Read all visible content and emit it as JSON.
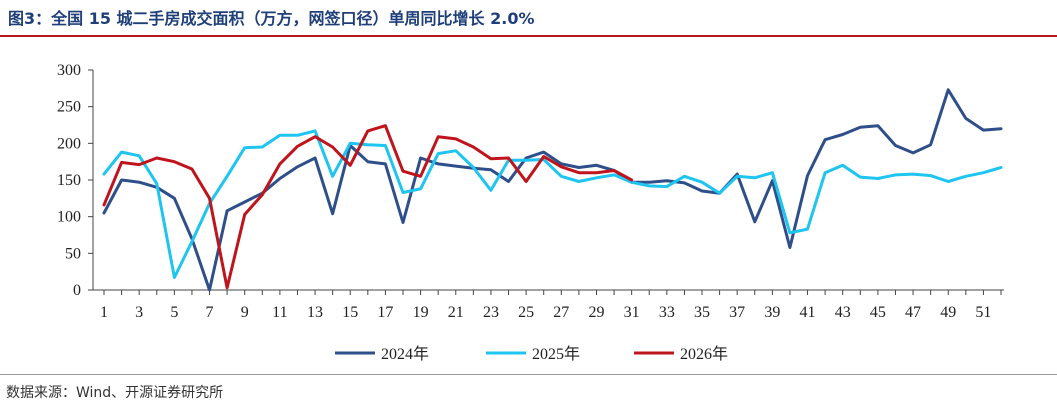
{
  "header": {
    "title": "图3：全国 15 城二手房成交面积（万方，网签口径）单周同比增长 2.0%"
  },
  "footer": {
    "source": "数据来源：Wind、开源证券研究所"
  },
  "chart_data": {
    "type": "line",
    "title": "",
    "xlabel": "",
    "ylabel": "",
    "ylim": [
      0,
      300
    ],
    "yticks": [
      0,
      50,
      100,
      150,
      200,
      250,
      300
    ],
    "xlim": [
      1,
      52
    ],
    "xticks": [
      1,
      3,
      5,
      7,
      9,
      11,
      13,
      15,
      17,
      19,
      21,
      23,
      25,
      27,
      29,
      31,
      33,
      35,
      37,
      39,
      41,
      43,
      45,
      47,
      49,
      51
    ],
    "grid": false,
    "legend_position": "bottom",
    "series": [
      {
        "name": "2024年",
        "color": "#2e4f8a",
        "x": [
          1,
          2,
          3,
          4,
          5,
          6,
          7,
          8,
          9,
          10,
          11,
          12,
          13,
          14,
          15,
          16,
          17,
          18,
          19,
          20,
          21,
          22,
          23,
          24,
          25,
          26,
          27,
          28,
          29,
          30,
          31,
          32,
          33,
          34,
          35,
          36,
          37,
          38,
          39,
          40,
          41,
          42,
          43,
          44,
          45,
          46,
          47,
          48,
          49,
          50,
          51,
          52
        ],
        "values": [
          105,
          150,
          147,
          140,
          125,
          70,
          0,
          108,
          120,
          132,
          152,
          168,
          180,
          104,
          197,
          175,
          172,
          92,
          180,
          172,
          169,
          166,
          164,
          148,
          180,
          188,
          172,
          167,
          170,
          163,
          147,
          147,
          149,
          146,
          135,
          132,
          158,
          93,
          149,
          58,
          156,
          205,
          212,
          222,
          224,
          197,
          187,
          198,
          273,
          234,
          218,
          220
        ]
      },
      {
        "name": "2025年",
        "color": "#1ec5f0",
        "x": [
          1,
          2,
          3,
          4,
          5,
          6,
          7,
          8,
          9,
          10,
          11,
          12,
          13,
          14,
          15,
          16,
          17,
          18,
          19,
          20,
          21,
          22,
          23,
          24,
          25,
          26,
          27,
          28,
          29,
          30,
          31,
          32,
          33,
          34,
          35,
          36,
          37,
          38,
          39,
          40,
          41,
          42,
          43,
          44,
          45,
          46,
          47,
          48,
          49,
          50,
          51,
          52
        ],
        "values": [
          158,
          188,
          183,
          145,
          17,
          66,
          118,
          155,
          194,
          195,
          211,
          211,
          217,
          155,
          200,
          198,
          197,
          133,
          138,
          186,
          190,
          167,
          136,
          177,
          177,
          178,
          155,
          148,
          153,
          157,
          147,
          142,
          141,
          155,
          147,
          132,
          155,
          153,
          160,
          78,
          83,
          160,
          170,
          154,
          152,
          157,
          158,
          156,
          148,
          155,
          160,
          167
        ]
      },
      {
        "name": "2026年",
        "color": "#c0141c",
        "x": [
          1,
          2,
          3,
          4,
          5,
          6,
          7,
          8,
          9,
          10,
          11,
          12,
          13,
          14,
          15,
          16,
          17,
          18,
          19,
          20,
          21,
          22,
          23,
          24,
          25,
          26,
          27,
          28,
          29,
          30,
          31
        ],
        "values": [
          116,
          174,
          171,
          180,
          175,
          165,
          125,
          3,
          103,
          130,
          172,
          196,
          209,
          195,
          170,
          217,
          224,
          162,
          155,
          209,
          206,
          195,
          179,
          180,
          148,
          182,
          168,
          160,
          160,
          163,
          150
        ]
      }
    ]
  }
}
